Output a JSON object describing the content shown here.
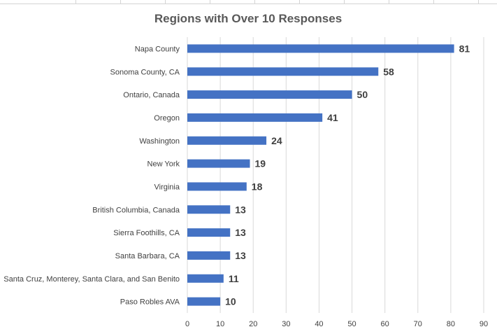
{
  "chart_data": {
    "type": "bar",
    "orientation": "horizontal",
    "title": "Regions with Over 10 Responses",
    "xlabel": "",
    "ylabel": "",
    "categories": [
      "Napa County",
      "Sonoma County, CA",
      "Ontario, Canada",
      "Oregon",
      "Washington",
      "New York",
      "Virginia",
      "British Columbia, Canada",
      "Sierra Foothills, CA",
      "Santa Barbara, CA",
      "Santa Cruz, Monterey, Santa Clara, and San Benito",
      "Paso Robles AVA"
    ],
    "values": [
      81,
      58,
      50,
      41,
      24,
      19,
      18,
      13,
      13,
      13,
      11,
      10
    ],
    "xlim": [
      0,
      90
    ],
    "ticks": [
      "0",
      "10",
      "20",
      "30",
      "40",
      "50",
      "60",
      "70",
      "80",
      "90"
    ],
    "grid": true,
    "data_labels": true,
    "bar_color": "#4472C4",
    "grid_color": "#d9d9d9"
  }
}
